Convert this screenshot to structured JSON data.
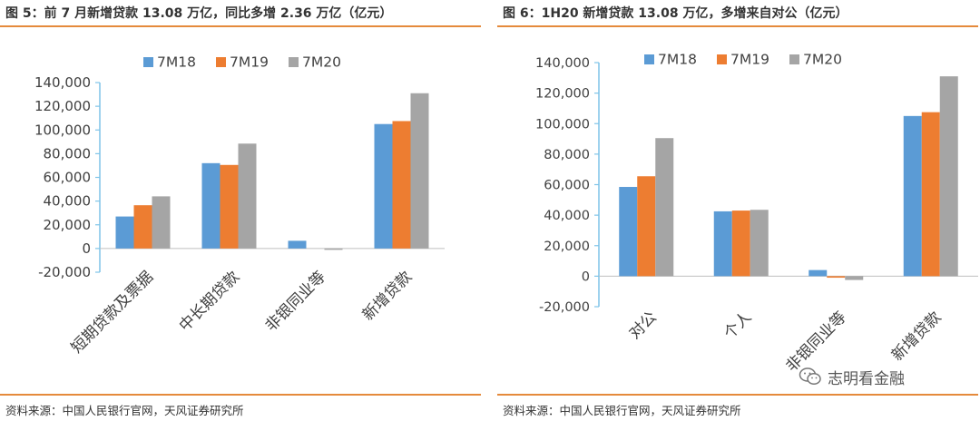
{
  "left": {
    "title": "图 5：前 7 月新增贷款 13.08 万亿，同比多增 2.36 万亿（亿元）",
    "source": "资料来源：中国人民银行官网，天风证券研究所"
  },
  "right": {
    "title": "图 6：1H20 新增贷款 13.08 万亿，多增来自对公（亿元）",
    "source": "资料来源：中国人民银行官网，天风证券研究所"
  },
  "watermark": {
    "text": "志明看金融",
    "icon": "wechat-icon"
  },
  "chart_data": [
    {
      "type": "bar",
      "title": "",
      "categories": [
        "短期贷款及票据",
        "中长期贷款",
        "非银同业等",
        "新增贷款"
      ],
      "series": [
        {
          "name": "7M18",
          "color": "#5b9bd5",
          "values": [
            27000,
            72000,
            6500,
            105000
          ]
        },
        {
          "name": "7M19",
          "color": "#ed7d31",
          "values": [
            36500,
            70500,
            0,
            107500
          ]
        },
        {
          "name": "7M20",
          "color": "#a5a5a5",
          "values": [
            44000,
            88500,
            -1000,
            131000
          ]
        }
      ],
      "ylim": [
        -20000,
        140000
      ],
      "yticks": [
        "-20,000",
        "0",
        "20,000",
        "40,000",
        "60,000",
        "80,000",
        "100,000",
        "120,000",
        "140,000"
      ],
      "grid": false,
      "legend": "top-center",
      "xlabel": "",
      "ylabel": ""
    },
    {
      "type": "bar",
      "title": "",
      "categories": [
        "对公",
        "个人",
        "非银同业等",
        "新增贷款"
      ],
      "series": [
        {
          "name": "7M18",
          "color": "#5b9bd5",
          "values": [
            58500,
            42500,
            4000,
            105000
          ]
        },
        {
          "name": "7M19",
          "color": "#ed7d31",
          "values": [
            65500,
            43000,
            -1000,
            107500
          ]
        },
        {
          "name": "7M20",
          "color": "#a5a5a5",
          "values": [
            90500,
            43500,
            -2500,
            131000
          ]
        }
      ],
      "ylim": [
        -20000,
        140000
      ],
      "yticks": [
        "-20,000",
        "0",
        "20,000",
        "40,000",
        "60,000",
        "80,000",
        "100,000",
        "120,000",
        "140,000"
      ],
      "grid": false,
      "legend": "top-center",
      "xlabel": "",
      "ylabel": ""
    }
  ]
}
